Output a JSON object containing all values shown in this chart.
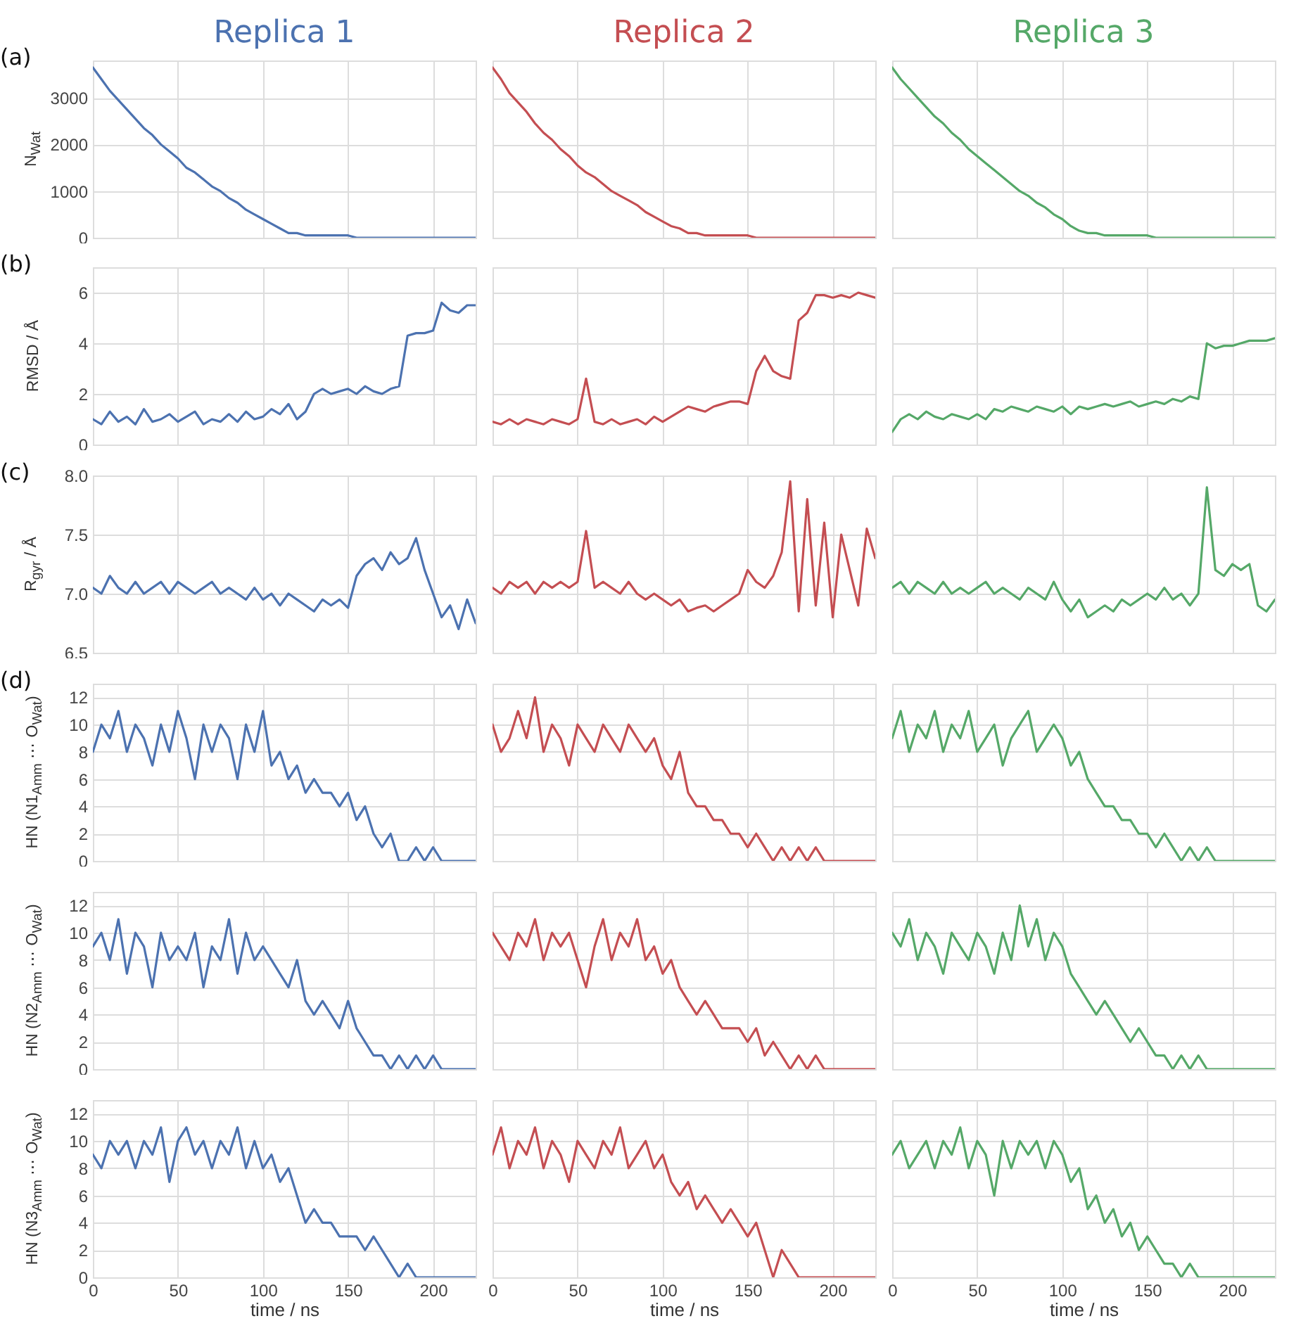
{
  "chart_data": [
    {
      "type": "line",
      "title": "Replica 1",
      "ylabel": "N$_{Wat}$",
      "annotations": [
        "(a)"
      ],
      "x": [
        0,
        5,
        10,
        15,
        20,
        25,
        30,
        35,
        40,
        45,
        50,
        55,
        60,
        65,
        70,
        75,
        80,
        85,
        90,
        95,
        100,
        105,
        110,
        115,
        120,
        125,
        130,
        135,
        140,
        145,
        150,
        155,
        160,
        165,
        170,
        175,
        180,
        185,
        190,
        195,
        200,
        205,
        210,
        215,
        220,
        225
      ],
      "xlim": [
        0,
        225
      ],
      "xticks": [
        0,
        50,
        100,
        150,
        200
      ],
      "ylim": [
        0,
        3800
      ],
      "yticks": [
        0,
        1000,
        2000,
        3000
      ],
      "grid": true,
      "tick_labels": "y",
      "series": [
        {
          "color": "#4c72b0",
          "values": [
            3650,
            3400,
            3150,
            2950,
            2750,
            2550,
            2350,
            2200,
            2000,
            1850,
            1700,
            1500,
            1400,
            1250,
            1100,
            1000,
            850,
            750,
            600,
            500,
            400,
            300,
            200,
            100,
            100,
            50,
            50,
            50,
            50,
            50,
            50,
            0,
            0,
            0,
            0,
            0,
            0,
            0,
            0,
            0,
            0,
            0,
            0,
            0,
            0,
            0
          ]
        }
      ]
    },
    {
      "type": "line",
      "title": "Replica 2",
      "x": [
        0,
        5,
        10,
        15,
        20,
        25,
        30,
        35,
        40,
        45,
        50,
        55,
        60,
        65,
        70,
        75,
        80,
        85,
        90,
        95,
        100,
        105,
        110,
        115,
        120,
        125,
        130,
        135,
        140,
        145,
        150,
        155,
        160,
        165,
        170,
        175,
        180,
        185,
        190,
        195,
        200,
        205,
        210,
        215,
        220,
        225
      ],
      "xlim": [
        0,
        225
      ],
      "xticks": [
        0,
        50,
        100,
        150,
        200
      ],
      "ylim": [
        0,
        3800
      ],
      "yticks": [
        0,
        1000,
        2000,
        3000
      ],
      "grid": true,
      "tick_labels": false,
      "series": [
        {
          "color": "#c44e52",
          "values": [
            3650,
            3400,
            3100,
            2900,
            2700,
            2450,
            2250,
            2100,
            1900,
            1750,
            1550,
            1400,
            1300,
            1150,
            1000,
            900,
            800,
            700,
            550,
            450,
            350,
            250,
            200,
            100,
            100,
            50,
            50,
            50,
            50,
            50,
            50,
            0,
            0,
            0,
            0,
            0,
            0,
            0,
            0,
            0,
            0,
            0,
            0,
            0,
            0,
            0
          ]
        }
      ]
    },
    {
      "type": "line",
      "title": "Replica 3",
      "x": [
        0,
        5,
        10,
        15,
        20,
        25,
        30,
        35,
        40,
        45,
        50,
        55,
        60,
        65,
        70,
        75,
        80,
        85,
        90,
        95,
        100,
        105,
        110,
        115,
        120,
        125,
        130,
        135,
        140,
        145,
        150,
        155,
        160,
        165,
        170,
        175,
        180,
        185,
        190,
        195,
        200,
        205,
        210,
        215,
        220,
        225
      ],
      "xlim": [
        0,
        225
      ],
      "xticks": [
        0,
        50,
        100,
        150,
        200
      ],
      "ylim": [
        0,
        3800
      ],
      "yticks": [
        0,
        1000,
        2000,
        3000
      ],
      "grid": true,
      "tick_labels": false,
      "series": [
        {
          "color": "#55a868",
          "values": [
            3650,
            3400,
            3200,
            3000,
            2800,
            2600,
            2450,
            2250,
            2100,
            1900,
            1750,
            1600,
            1450,
            1300,
            1150,
            1000,
            900,
            750,
            650,
            500,
            400,
            250,
            150,
            100,
            100,
            50,
            50,
            50,
            50,
            50,
            50,
            0,
            0,
            0,
            0,
            0,
            0,
            0,
            0,
            0,
            0,
            0,
            0,
            0,
            0,
            0
          ]
        }
      ]
    },
    {
      "type": "line",
      "ylabel": "RMSD / Å",
      "annotations": [
        "(b)"
      ],
      "x": [
        0,
        5,
        10,
        15,
        20,
        25,
        30,
        35,
        40,
        45,
        50,
        55,
        60,
        65,
        70,
        75,
        80,
        85,
        90,
        95,
        100,
        105,
        110,
        115,
        120,
        125,
        130,
        135,
        140,
        145,
        150,
        155,
        160,
        165,
        170,
        175,
        180,
        185,
        190,
        195,
        200,
        205,
        210,
        215,
        220,
        225
      ],
      "xlim": [
        0,
        225
      ],
      "xticks": [
        0,
        50,
        100,
        150,
        200
      ],
      "ylim": [
        0,
        7
      ],
      "yticks": [
        0,
        2,
        4,
        6
      ],
      "grid": true,
      "tick_labels": "y",
      "series": [
        {
          "color": "#4c72b0",
          "values": [
            1.0,
            0.8,
            1.3,
            0.9,
            1.1,
            0.8,
            1.4,
            0.9,
            1.0,
            1.2,
            0.9,
            1.1,
            1.3,
            0.8,
            1.0,
            0.9,
            1.2,
            0.9,
            1.3,
            1.0,
            1.1,
            1.4,
            1.2,
            1.6,
            1.0,
            1.3,
            2.0,
            2.2,
            2.0,
            2.1,
            2.2,
            2.0,
            2.3,
            2.1,
            2.0,
            2.2,
            2.3,
            4.3,
            4.4,
            4.4,
            4.5,
            5.6,
            5.3,
            5.2,
            5.5,
            5.5
          ]
        }
      ]
    },
    {
      "type": "line",
      "x": [
        0,
        5,
        10,
        15,
        20,
        25,
        30,
        35,
        40,
        45,
        50,
        55,
        60,
        65,
        70,
        75,
        80,
        85,
        90,
        95,
        100,
        105,
        110,
        115,
        120,
        125,
        130,
        135,
        140,
        145,
        150,
        155,
        160,
        165,
        170,
        175,
        180,
        185,
        190,
        195,
        200,
        205,
        210,
        215,
        220,
        225
      ],
      "xlim": [
        0,
        225
      ],
      "xticks": [
        0,
        50,
        100,
        150,
        200
      ],
      "ylim": [
        0,
        7
      ],
      "yticks": [
        0,
        2,
        4,
        6
      ],
      "grid": true,
      "tick_labels": false,
      "series": [
        {
          "color": "#c44e52",
          "values": [
            0.9,
            0.8,
            1.0,
            0.8,
            1.0,
            0.9,
            0.8,
            1.0,
            0.9,
            0.8,
            1.0,
            2.6,
            0.9,
            0.8,
            1.0,
            0.8,
            0.9,
            1.0,
            0.8,
            1.1,
            0.9,
            1.1,
            1.3,
            1.5,
            1.4,
            1.3,
            1.5,
            1.6,
            1.7,
            1.7,
            1.6,
            2.9,
            3.5,
            2.9,
            2.7,
            2.6,
            4.9,
            5.2,
            5.9,
            5.9,
            5.8,
            5.9,
            5.8,
            6.0,
            5.9,
            5.8
          ]
        }
      ]
    },
    {
      "type": "line",
      "x": [
        0,
        5,
        10,
        15,
        20,
        25,
        30,
        35,
        40,
        45,
        50,
        55,
        60,
        65,
        70,
        75,
        80,
        85,
        90,
        95,
        100,
        105,
        110,
        115,
        120,
        125,
        130,
        135,
        140,
        145,
        150,
        155,
        160,
        165,
        170,
        175,
        180,
        185,
        190,
        195,
        200,
        205,
        210,
        215,
        220,
        225
      ],
      "xlim": [
        0,
        225
      ],
      "xticks": [
        0,
        50,
        100,
        150,
        200
      ],
      "ylim": [
        0,
        7
      ],
      "yticks": [
        0,
        2,
        4,
        6
      ],
      "grid": true,
      "tick_labels": false,
      "series": [
        {
          "color": "#55a868",
          "values": [
            0.5,
            1.0,
            1.2,
            1.0,
            1.3,
            1.1,
            1.0,
            1.2,
            1.1,
            1.0,
            1.2,
            1.0,
            1.4,
            1.3,
            1.5,
            1.4,
            1.3,
            1.5,
            1.4,
            1.3,
            1.5,
            1.2,
            1.5,
            1.4,
            1.5,
            1.6,
            1.5,
            1.6,
            1.7,
            1.5,
            1.6,
            1.7,
            1.6,
            1.8,
            1.7,
            1.9,
            1.8,
            4.0,
            3.8,
            3.9,
            3.9,
            4.0,
            4.1,
            4.1,
            4.1,
            4.2
          ]
        }
      ]
    },
    {
      "type": "line",
      "ylabel": "R$_{gyr}$ / Å",
      "annotations": [
        "(c)"
      ],
      "x": [
        0,
        5,
        10,
        15,
        20,
        25,
        30,
        35,
        40,
        45,
        50,
        55,
        60,
        65,
        70,
        75,
        80,
        85,
        90,
        95,
        100,
        105,
        110,
        115,
        120,
        125,
        130,
        135,
        140,
        145,
        150,
        155,
        160,
        165,
        170,
        175,
        180,
        185,
        190,
        195,
        200,
        205,
        210,
        215,
        220,
        225
      ],
      "xlim": [
        0,
        225
      ],
      "xticks": [
        0,
        50,
        100,
        150,
        200
      ],
      "ylim": [
        6.5,
        8.0
      ],
      "yticks": [
        {
          "value": 6.5,
          "label": "6.5"
        },
        {
          "value": 7,
          "label": "7.0"
        },
        {
          "value": 7.5,
          "label": "7.5"
        },
        {
          "value": 8,
          "label": "8.0"
        }
      ],
      "grid": true,
      "tick_labels": "y",
      "series": [
        {
          "color": "#4c72b0",
          "values": [
            7.05,
            7.0,
            7.15,
            7.05,
            7.0,
            7.1,
            7.0,
            7.05,
            7.1,
            7.0,
            7.1,
            7.05,
            7.0,
            7.05,
            7.1,
            7.0,
            7.05,
            7.0,
            6.95,
            7.05,
            6.95,
            7.0,
            6.9,
            7.0,
            6.95,
            6.9,
            6.85,
            6.95,
            6.9,
            6.95,
            6.88,
            7.15,
            7.25,
            7.3,
            7.2,
            7.35,
            7.25,
            7.3,
            7.47,
            7.2,
            7.0,
            6.8,
            6.9,
            6.7,
            6.95,
            6.75
          ]
        }
      ]
    },
    {
      "type": "line",
      "x": [
        0,
        5,
        10,
        15,
        20,
        25,
        30,
        35,
        40,
        45,
        50,
        55,
        60,
        65,
        70,
        75,
        80,
        85,
        90,
        95,
        100,
        105,
        110,
        115,
        120,
        125,
        130,
        135,
        140,
        145,
        150,
        155,
        160,
        165,
        170,
        175,
        180,
        185,
        190,
        195,
        200,
        205,
        210,
        215,
        220,
        225
      ],
      "xlim": [
        0,
        225
      ],
      "xticks": [
        0,
        50,
        100,
        150,
        200
      ],
      "ylim": [
        6.5,
        8.0
      ],
      "yticks": [
        6.5,
        7,
        7.5,
        8
      ],
      "grid": true,
      "tick_labels": false,
      "series": [
        {
          "color": "#c44e52",
          "values": [
            7.05,
            7.0,
            7.1,
            7.05,
            7.1,
            7.0,
            7.1,
            7.05,
            7.1,
            7.05,
            7.1,
            7.53,
            7.05,
            7.1,
            7.05,
            7.0,
            7.1,
            7.0,
            6.95,
            7.0,
            6.95,
            6.9,
            6.95,
            6.85,
            6.88,
            6.9,
            6.85,
            6.9,
            6.95,
            7.0,
            7.2,
            7.1,
            7.05,
            7.15,
            7.35,
            7.95,
            6.85,
            7.8,
            6.9,
            7.6,
            6.8,
            7.5,
            7.2,
            6.9,
            7.55,
            7.3
          ]
        }
      ]
    },
    {
      "type": "line",
      "x": [
        0,
        5,
        10,
        15,
        20,
        25,
        30,
        35,
        40,
        45,
        50,
        55,
        60,
        65,
        70,
        75,
        80,
        85,
        90,
        95,
        100,
        105,
        110,
        115,
        120,
        125,
        130,
        135,
        140,
        145,
        150,
        155,
        160,
        165,
        170,
        175,
        180,
        185,
        190,
        195,
        200,
        205,
        210,
        215,
        220,
        225
      ],
      "xlim": [
        0,
        225
      ],
      "xticks": [
        0,
        50,
        100,
        150,
        200
      ],
      "ylim": [
        6.5,
        8.0
      ],
      "yticks": [
        6.5,
        7,
        7.5,
        8
      ],
      "grid": true,
      "tick_labels": false,
      "series": [
        {
          "color": "#55a868",
          "values": [
            7.05,
            7.1,
            7.0,
            7.1,
            7.05,
            7.0,
            7.1,
            7.0,
            7.05,
            7.0,
            7.05,
            7.1,
            7.0,
            7.05,
            7.0,
            6.95,
            7.05,
            7.0,
            6.95,
            7.1,
            6.95,
            6.85,
            6.95,
            6.8,
            6.85,
            6.9,
            6.85,
            6.95,
            6.9,
            6.95,
            7.0,
            6.95,
            7.05,
            6.95,
            7.0,
            6.9,
            7.0,
            7.9,
            7.2,
            7.15,
            7.25,
            7.2,
            7.25,
            6.9,
            6.85,
            6.95
          ]
        }
      ]
    },
    {
      "type": "line",
      "ylabel": "HN (N1$_{Amm}$ ⋯ O$_{Wat}$)",
      "annotations": [
        "(d)"
      ],
      "x": [
        0,
        5,
        10,
        15,
        20,
        25,
        30,
        35,
        40,
        45,
        50,
        55,
        60,
        65,
        70,
        75,
        80,
        85,
        90,
        95,
        100,
        105,
        110,
        115,
        120,
        125,
        130,
        135,
        140,
        145,
        150,
        155,
        160,
        165,
        170,
        175,
        180,
        185,
        190,
        195,
        200,
        205,
        210,
        215,
        220,
        225
      ],
      "xlim": [
        0,
        225
      ],
      "xticks": [
        0,
        50,
        100,
        150,
        200
      ],
      "ylim": [
        0,
        13
      ],
      "yticks": [
        0,
        2,
        4,
        6,
        8,
        10,
        12
      ],
      "grid": true,
      "tick_labels": "y",
      "series": [
        {
          "color": "#4c72b0",
          "values": [
            8,
            10,
            9,
            11,
            8,
            10,
            9,
            7,
            10,
            8,
            11,
            9,
            6,
            10,
            8,
            10,
            9,
            6,
            10,
            8,
            11,
            7,
            8,
            6,
            7,
            5,
            6,
            5,
            5,
            4,
            5,
            3,
            4,
            2,
            1,
            2,
            0,
            0,
            1,
            0,
            1,
            0,
            0,
            0,
            0,
            0
          ]
        }
      ]
    },
    {
      "type": "line",
      "x": [
        0,
        5,
        10,
        15,
        20,
        25,
        30,
        35,
        40,
        45,
        50,
        55,
        60,
        65,
        70,
        75,
        80,
        85,
        90,
        95,
        100,
        105,
        110,
        115,
        120,
        125,
        130,
        135,
        140,
        145,
        150,
        155,
        160,
        165,
        170,
        175,
        180,
        185,
        190,
        195,
        200,
        205,
        210,
        215,
        220,
        225
      ],
      "xlim": [
        0,
        225
      ],
      "xticks": [
        0,
        50,
        100,
        150,
        200
      ],
      "ylim": [
        0,
        13
      ],
      "yticks": [
        0,
        2,
        4,
        6,
        8,
        10,
        12
      ],
      "grid": true,
      "tick_labels": false,
      "series": [
        {
          "color": "#c44e52",
          "values": [
            10,
            8,
            9,
            11,
            9,
            12,
            8,
            10,
            9,
            7,
            10,
            9,
            8,
            10,
            9,
            8,
            10,
            9,
            8,
            9,
            7,
            6,
            8,
            5,
            4,
            4,
            3,
            3,
            2,
            2,
            1,
            2,
            1,
            0,
            1,
            0,
            1,
            0,
            1,
            0,
            0,
            0,
            0,
            0,
            0,
            0
          ]
        }
      ]
    },
    {
      "type": "line",
      "x": [
        0,
        5,
        10,
        15,
        20,
        25,
        30,
        35,
        40,
        45,
        50,
        55,
        60,
        65,
        70,
        75,
        80,
        85,
        90,
        95,
        100,
        105,
        110,
        115,
        120,
        125,
        130,
        135,
        140,
        145,
        150,
        155,
        160,
        165,
        170,
        175,
        180,
        185,
        190,
        195,
        200,
        205,
        210,
        215,
        220,
        225
      ],
      "xlim": [
        0,
        225
      ],
      "xticks": [
        0,
        50,
        100,
        150,
        200
      ],
      "ylim": [
        0,
        13
      ],
      "yticks": [
        0,
        2,
        4,
        6,
        8,
        10,
        12
      ],
      "grid": true,
      "tick_labels": false,
      "series": [
        {
          "color": "#55a868",
          "values": [
            9,
            11,
            8,
            10,
            9,
            11,
            8,
            10,
            9,
            11,
            8,
            9,
            10,
            7,
            9,
            10,
            11,
            8,
            9,
            10,
            9,
            7,
            8,
            6,
            5,
            4,
            4,
            3,
            3,
            2,
            2,
            1,
            2,
            1,
            0,
            1,
            0,
            1,
            0,
            0,
            0,
            0,
            0,
            0,
            0,
            0
          ]
        }
      ]
    },
    {
      "type": "line",
      "ylabel": "HN (N2$_{Amm}$ ⋯ O$_{Wat}$)",
      "x": [
        0,
        5,
        10,
        15,
        20,
        25,
        30,
        35,
        40,
        45,
        50,
        55,
        60,
        65,
        70,
        75,
        80,
        85,
        90,
        95,
        100,
        105,
        110,
        115,
        120,
        125,
        130,
        135,
        140,
        145,
        150,
        155,
        160,
        165,
        170,
        175,
        180,
        185,
        190,
        195,
        200,
        205,
        210,
        215,
        220,
        225
      ],
      "xlim": [
        0,
        225
      ],
      "xticks": [
        0,
        50,
        100,
        150,
        200
      ],
      "ylim": [
        0,
        13
      ],
      "yticks": [
        0,
        2,
        4,
        6,
        8,
        10,
        12
      ],
      "grid": true,
      "tick_labels": "y",
      "series": [
        {
          "color": "#4c72b0",
          "values": [
            9,
            10,
            8,
            11,
            7,
            10,
            9,
            6,
            10,
            8,
            9,
            8,
            10,
            6,
            9,
            8,
            11,
            7,
            10,
            8,
            9,
            8,
            7,
            6,
            8,
            5,
            4,
            5,
            4,
            3,
            5,
            3,
            2,
            1,
            1,
            0,
            1,
            0,
            1,
            0,
            1,
            0,
            0,
            0,
            0,
            0
          ]
        }
      ]
    },
    {
      "type": "line",
      "x": [
        0,
        5,
        10,
        15,
        20,
        25,
        30,
        35,
        40,
        45,
        50,
        55,
        60,
        65,
        70,
        75,
        80,
        85,
        90,
        95,
        100,
        105,
        110,
        115,
        120,
        125,
        130,
        135,
        140,
        145,
        150,
        155,
        160,
        165,
        170,
        175,
        180,
        185,
        190,
        195,
        200,
        205,
        210,
        215,
        220,
        225
      ],
      "xlim": [
        0,
        225
      ],
      "xticks": [
        0,
        50,
        100,
        150,
        200
      ],
      "ylim": [
        0,
        13
      ],
      "yticks": [
        0,
        2,
        4,
        6,
        8,
        10,
        12
      ],
      "grid": true,
      "tick_labels": false,
      "series": [
        {
          "color": "#c44e52",
          "values": [
            10,
            9,
            8,
            10,
            9,
            11,
            8,
            10,
            9,
            10,
            8,
            6,
            9,
            11,
            8,
            10,
            9,
            11,
            8,
            9,
            7,
            8,
            6,
            5,
            4,
            5,
            4,
            3,
            3,
            3,
            2,
            3,
            1,
            2,
            1,
            0,
            1,
            0,
            1,
            0,
            0,
            0,
            0,
            0,
            0,
            0
          ]
        }
      ]
    },
    {
      "type": "line",
      "x": [
        0,
        5,
        10,
        15,
        20,
        25,
        30,
        35,
        40,
        45,
        50,
        55,
        60,
        65,
        70,
        75,
        80,
        85,
        90,
        95,
        100,
        105,
        110,
        115,
        120,
        125,
        130,
        135,
        140,
        145,
        150,
        155,
        160,
        165,
        170,
        175,
        180,
        185,
        190,
        195,
        200,
        205,
        210,
        215,
        220,
        225
      ],
      "xlim": [
        0,
        225
      ],
      "xticks": [
        0,
        50,
        100,
        150,
        200
      ],
      "ylim": [
        0,
        13
      ],
      "yticks": [
        0,
        2,
        4,
        6,
        8,
        10,
        12
      ],
      "grid": true,
      "tick_labels": false,
      "series": [
        {
          "color": "#55a868",
          "values": [
            10,
            9,
            11,
            8,
            10,
            9,
            7,
            10,
            9,
            8,
            10,
            9,
            7,
            10,
            8,
            12,
            9,
            11,
            8,
            10,
            9,
            7,
            6,
            5,
            4,
            5,
            4,
            3,
            2,
            3,
            2,
            1,
            1,
            0,
            1,
            0,
            1,
            0,
            0,
            0,
            0,
            0,
            0,
            0,
            0,
            0
          ]
        }
      ]
    },
    {
      "type": "line",
      "ylabel": "HN (N3$_{Amm}$ ⋯ O$_{Wat}$)",
      "xlabel": "time / ns",
      "x": [
        0,
        5,
        10,
        15,
        20,
        25,
        30,
        35,
        40,
        45,
        50,
        55,
        60,
        65,
        70,
        75,
        80,
        85,
        90,
        95,
        100,
        105,
        110,
        115,
        120,
        125,
        130,
        135,
        140,
        145,
        150,
        155,
        160,
        165,
        170,
        175,
        180,
        185,
        190,
        195,
        200,
        205,
        210,
        215,
        220,
        225
      ],
      "xlim": [
        0,
        225
      ],
      "xticks": [
        0,
        50,
        100,
        150,
        200
      ],
      "ylim": [
        0,
        13
      ],
      "yticks": [
        0,
        2,
        4,
        6,
        8,
        10,
        12
      ],
      "grid": true,
      "series": [
        {
          "color": "#4c72b0",
          "values": [
            9,
            8,
            10,
            9,
            10,
            8,
            10,
            9,
            11,
            7,
            10,
            11,
            9,
            10,
            8,
            10,
            9,
            11,
            8,
            10,
            8,
            9,
            7,
            8,
            6,
            4,
            5,
            4,
            4,
            3,
            3,
            3,
            2,
            3,
            2,
            1,
            0,
            1,
            0,
            0,
            0,
            0,
            0,
            0,
            0,
            0
          ]
        }
      ]
    },
    {
      "type": "line",
      "xlabel": "time / ns",
      "x": [
        0,
        5,
        10,
        15,
        20,
        25,
        30,
        35,
        40,
        45,
        50,
        55,
        60,
        65,
        70,
        75,
        80,
        85,
        90,
        95,
        100,
        105,
        110,
        115,
        120,
        125,
        130,
        135,
        140,
        145,
        150,
        155,
        160,
        165,
        170,
        175,
        180,
        185,
        190,
        195,
        200,
        205,
        210,
        215,
        220,
        225
      ],
      "xlim": [
        0,
        225
      ],
      "xticks": [
        0,
        50,
        100,
        150,
        200
      ],
      "ylim": [
        0,
        13
      ],
      "yticks": [
        0,
        2,
        4,
        6,
        8,
        10,
        12
      ],
      "grid": true,
      "tick_labels": "x",
      "series": [
        {
          "color": "#c44e52",
          "values": [
            9,
            11,
            8,
            10,
            9,
            11,
            8,
            10,
            9,
            7,
            10,
            9,
            8,
            10,
            9,
            11,
            8,
            9,
            10,
            8,
            9,
            7,
            6,
            7,
            5,
            6,
            5,
            4,
            5,
            4,
            3,
            4,
            2,
            0,
            2,
            1,
            0,
            0,
            0,
            0,
            0,
            0,
            0,
            0,
            0,
            0
          ]
        }
      ]
    },
    {
      "type": "line",
      "xlabel": "time / ns",
      "x": [
        0,
        5,
        10,
        15,
        20,
        25,
        30,
        35,
        40,
        45,
        50,
        55,
        60,
        65,
        70,
        75,
        80,
        85,
        90,
        95,
        100,
        105,
        110,
        115,
        120,
        125,
        130,
        135,
        140,
        145,
        150,
        155,
        160,
        165,
        170,
        175,
        180,
        185,
        190,
        195,
        200,
        205,
        210,
        215,
        220,
        225
      ],
      "xlim": [
        0,
        225
      ],
      "xticks": [
        0,
        50,
        100,
        150,
        200
      ],
      "ylim": [
        0,
        13
      ],
      "yticks": [
        0,
        2,
        4,
        6,
        8,
        10,
        12
      ],
      "grid": true,
      "tick_labels": "x",
      "series": [
        {
          "color": "#55a868",
          "values": [
            9,
            10,
            8,
            9,
            10,
            8,
            10,
            9,
            11,
            8,
            10,
            9,
            6,
            10,
            8,
            10,
            9,
            10,
            8,
            10,
            9,
            7,
            8,
            5,
            6,
            4,
            5,
            3,
            4,
            2,
            3,
            2,
            1,
            1,
            0,
            1,
            0,
            0,
            0,
            0,
            0,
            0,
            0,
            0,
            0,
            0
          ]
        }
      ]
    }
  ]
}
